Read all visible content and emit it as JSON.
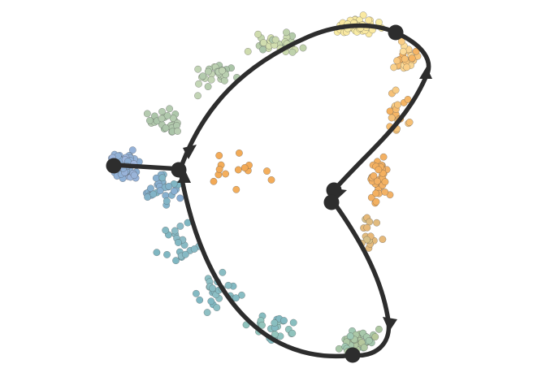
{
  "colors": {
    "trajectory": "#2d2d2d",
    "node": "#2d2d2d",
    "cluster_blue": "#8aaed3",
    "cluster_green": "#aac4a8",
    "cluster_cream": "#f7eca6",
    "cluster_orange": "#f4b05e",
    "cluster_teal": "#7fb7c2"
  }
}
